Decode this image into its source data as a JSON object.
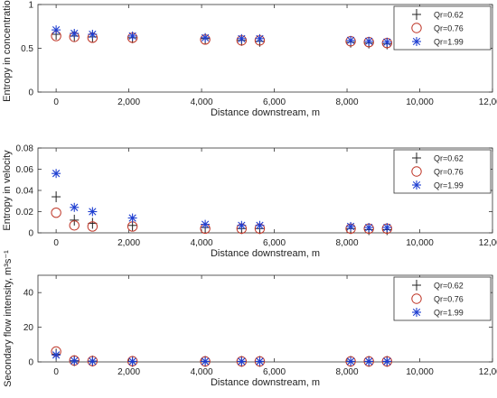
{
  "chart_data": [
    {
      "type": "scatter",
      "xlabel": "Distance downstream, m",
      "ylabel": "Entropy in concentration",
      "xlim": [
        -500,
        12000
      ],
      "ylim": [
        0,
        1
      ],
      "xticks": [
        0,
        2000,
        4000,
        6000,
        8000,
        10000,
        12000
      ],
      "xtick_labels": [
        "0",
        "2,000",
        "4,000",
        "6,000",
        "8,000",
        "10,000",
        "12,000"
      ],
      "yticks": [
        0,
        0.5,
        1
      ],
      "ytick_labels": [
        "0",
        "0.5",
        "1"
      ],
      "legend_position": "top-right",
      "x": [
        0,
        500,
        1000,
        2100,
        4100,
        5100,
        5600,
        8100,
        8600,
        9100
      ],
      "series": [
        {
          "name": "Qr=0.62",
          "marker": "plus",
          "color": "#222222",
          "values": [
            0.66,
            0.64,
            0.63,
            0.62,
            0.61,
            0.59,
            0.58,
            0.57,
            0.56,
            0.55
          ]
        },
        {
          "name": "Qr=0.76",
          "marker": "circle",
          "color": "#c0392b",
          "values": [
            0.64,
            0.63,
            0.62,
            0.62,
            0.6,
            0.59,
            0.59,
            0.58,
            0.57,
            0.56
          ]
        },
        {
          "name": "Qr=1.99",
          "marker": "star",
          "color": "#1f3fd1",
          "values": [
            0.71,
            0.67,
            0.66,
            0.64,
            0.62,
            0.61,
            0.61,
            0.59,
            0.58,
            0.57
          ]
        }
      ]
    },
    {
      "type": "scatter",
      "xlabel": "Distance downstream, m",
      "ylabel": "Entropy in velocity",
      "xlim": [
        -500,
        12000
      ],
      "ylim": [
        0,
        0.08
      ],
      "xticks": [
        0,
        2000,
        4000,
        6000,
        8000,
        10000,
        12000
      ],
      "xtick_labels": [
        "0",
        "2,000",
        "4,000",
        "6,000",
        "8,000",
        "10,000",
        "12,000"
      ],
      "yticks": [
        0,
        0.02,
        0.04,
        0.06,
        0.08
      ],
      "ytick_labels": [
        "0",
        "0.02",
        "0.04",
        "0.06",
        "0.08"
      ],
      "legend_position": "top-right",
      "x": [
        0,
        500,
        1000,
        2100,
        4100,
        5100,
        5600,
        8100,
        8600,
        9100
      ],
      "series": [
        {
          "name": "Qr=0.62",
          "marker": "plus",
          "color": "#222222",
          "values": [
            0.034,
            0.012,
            0.009,
            0.007,
            0.005,
            0.004,
            0.004,
            0.004,
            0.003,
            0.003
          ]
        },
        {
          "name": "Qr=0.76",
          "marker": "circle",
          "color": "#c0392b",
          "values": [
            0.019,
            0.007,
            0.006,
            0.006,
            0.004,
            0.004,
            0.004,
            0.004,
            0.004,
            0.004
          ]
        },
        {
          "name": "Qr=1.99",
          "marker": "star",
          "color": "#1f3fd1",
          "values": [
            0.056,
            0.024,
            0.02,
            0.014,
            0.008,
            0.007,
            0.007,
            0.006,
            0.005,
            0.005
          ]
        }
      ]
    },
    {
      "type": "scatter",
      "xlabel": "Distance downstream, m",
      "ylabel": "Secondary flow intensity, m³s⁻¹",
      "xlim": [
        -500,
        12000
      ],
      "ylim": [
        0,
        50
      ],
      "xticks": [
        0,
        2000,
        4000,
        6000,
        8000,
        10000,
        12000
      ],
      "xtick_labels": [
        "0",
        "2,000",
        "4,000",
        "6,000",
        "8,000",
        "10,000",
        "12,000"
      ],
      "yticks": [
        0,
        20,
        40
      ],
      "ytick_labels": [
        "0",
        "20",
        "40"
      ],
      "legend_position": "top-right",
      "x": [
        0,
        500,
        1000,
        2100,
        4100,
        5100,
        5600,
        8100,
        8600,
        9100
      ],
      "series": [
        {
          "name": "Qr=0.62",
          "marker": "plus",
          "color": "#222222",
          "values": [
            4.5,
            0.7,
            0.5,
            0.3,
            0.3,
            0.3,
            0.3,
            0.3,
            0.3,
            0.3
          ]
        },
        {
          "name": "Qr=0.76",
          "marker": "circle",
          "color": "#c0392b",
          "values": [
            6.0,
            0.8,
            0.5,
            0.4,
            0.3,
            0.3,
            0.3,
            0.3,
            0.3,
            0.3
          ]
        },
        {
          "name": "Qr=1.99",
          "marker": "star",
          "color": "#1f3fd1",
          "values": [
            4.0,
            0.6,
            0.4,
            0.3,
            0.3,
            0.3,
            0.3,
            0.3,
            0.3,
            0.3
          ]
        }
      ]
    }
  ]
}
